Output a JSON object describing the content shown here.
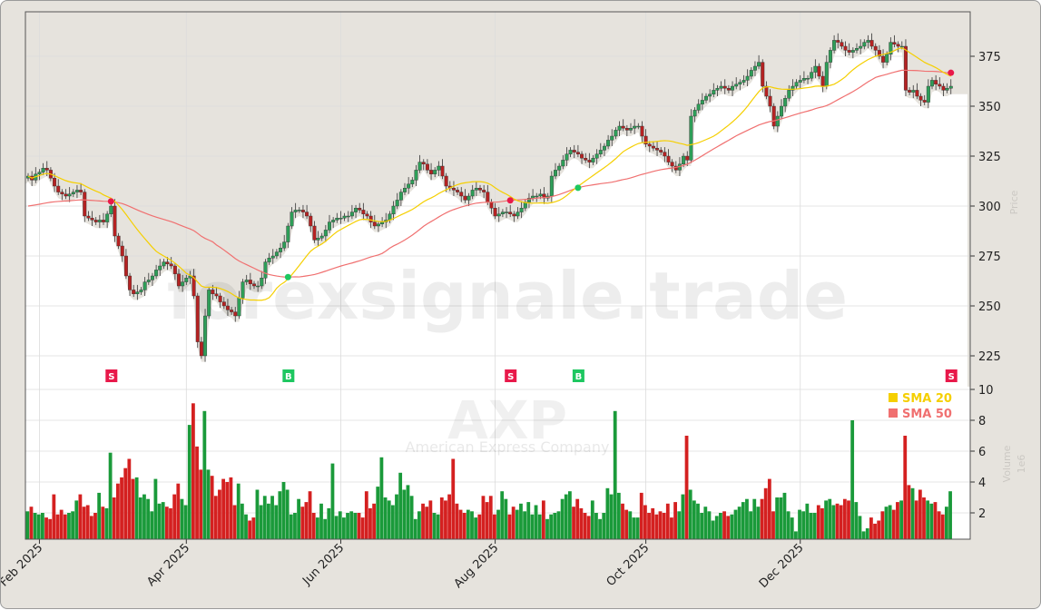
{
  "chart_data": {
    "type": "candlestick",
    "ticker": "AXP",
    "company": "American Express Company",
    "watermark": "forexsignale.trade",
    "price_axis": {
      "label": "Price",
      "ticks": [
        225,
        250,
        275,
        300,
        325,
        350,
        375
      ],
      "range": [
        213,
        397
      ]
    },
    "volume_axis": {
      "label": "Volume",
      "unit": "1e6",
      "ticks": [
        2,
        4,
        6,
        8,
        10
      ],
      "range": [
        0,
        10.2
      ]
    },
    "x_ticks": [
      {
        "label": "Feb 2025",
        "at": 3
      },
      {
        "label": "Apr 2025",
        "at": 42
      },
      {
        "label": "Jun 2025",
        "at": 83
      },
      {
        "label": "Aug 2025",
        "at": 124
      },
      {
        "label": "Oct 2025",
        "at": 164
      },
      {
        "label": "Dec 2025",
        "at": 205
      }
    ],
    "grid": true,
    "legend": {
      "position": "right",
      "items": [
        {
          "label": "SMA 20",
          "color": "#f5cf00"
        },
        {
          "label": "SMA 50",
          "color": "#f07070"
        }
      ]
    },
    "colors": {
      "up": "#1a9a3a",
      "down": "#d42020",
      "sell": "#e8194a",
      "buy": "#1ec760",
      "shade": "#e6e3dd"
    },
    "close": [
      315,
      313,
      316,
      317,
      319,
      318,
      314,
      310,
      307,
      306,
      305,
      306,
      307,
      308,
      307,
      295,
      294,
      293,
      292,
      293,
      292,
      296,
      300,
      285,
      280,
      275,
      265,
      258,
      256,
      257,
      258,
      262,
      263,
      265,
      268,
      270,
      272,
      271,
      270,
      266,
      260,
      262,
      264,
      265,
      255,
      232,
      225,
      245,
      258,
      256,
      255,
      252,
      250,
      248,
      247,
      245,
      254,
      262,
      263,
      261,
      260,
      260,
      264,
      272,
      274,
      275,
      277,
      279,
      282,
      290,
      297,
      298,
      298,
      297,
      295,
      290,
      283,
      284,
      285,
      288,
      292,
      293,
      294,
      294,
      295,
      295,
      297,
      299,
      298,
      296,
      295,
      292,
      290,
      291,
      292,
      293,
      296,
      300,
      303,
      307,
      309,
      311,
      313,
      318,
      322,
      321,
      318,
      316,
      318,
      320,
      315,
      310,
      309,
      308,
      307,
      305,
      303,
      305,
      308,
      309,
      308,
      307,
      302,
      299,
      295,
      296,
      297,
      297,
      296,
      295,
      297,
      299,
      302,
      304,
      305,
      305,
      306,
      304,
      305,
      315,
      318,
      320,
      323,
      326,
      328,
      327,
      326,
      324,
      323,
      322,
      324,
      326,
      328,
      330,
      333,
      335,
      338,
      340,
      339,
      338,
      339,
      340,
      340,
      335,
      331,
      330,
      329,
      328,
      327,
      325,
      322,
      320,
      318,
      321,
      325,
      323,
      345,
      348,
      351,
      353,
      355,
      356,
      358,
      359,
      360,
      359,
      358,
      360,
      361,
      362,
      363,
      365,
      368,
      370,
      372,
      360,
      355,
      350,
      340,
      345,
      350,
      354,
      358,
      360,
      362,
      363,
      364,
      364,
      367,
      370,
      365,
      360,
      372,
      378,
      383,
      382,
      380,
      378,
      377,
      378,
      379,
      380,
      382,
      383,
      380,
      378,
      375,
      372,
      376,
      382,
      381,
      380,
      380,
      358,
      357,
      358,
      355,
      353,
      352,
      360,
      363,
      361,
      360,
      358,
      359,
      360
    ],
    "volume": [
      2.1,
      2.4,
      2.0,
      1.9,
      2.0,
      1.7,
      1.6,
      3.2,
      1.9,
      2.2,
      1.9,
      2.0,
      2.1,
      2.8,
      3.2,
      2.4,
      2.5,
      1.8,
      2.0,
      3.3,
      2.4,
      2.3,
      5.9,
      3.0,
      3.9,
      4.3,
      4.9,
      5.5,
      4.2,
      4.3,
      3.0,
      3.2,
      2.9,
      2.1,
      4.2,
      2.6,
      2.7,
      2.4,
      2.3,
      3.2,
      3.9,
      2.9,
      2.5,
      7.7,
      9.1,
      6.3,
      4.8,
      8.6,
      4.8,
      4.4,
      3.1,
      3.5,
      4.2,
      4.0,
      4.3,
      2.5,
      3.9,
      2.6,
      1.9,
      1.5,
      1.7,
      3.5,
      2.5,
      3.1,
      2.6,
      3.1,
      2.5,
      3.4,
      4.0,
      3.5,
      1.9,
      2.0,
      2.9,
      2.4,
      2.7,
      3.4,
      2.0,
      1.7,
      2.6,
      1.6,
      2.3,
      5.2,
      1.8,
      2.1,
      1.7,
      2.0,
      2.1,
      2.0,
      2.0,
      1.7,
      3.4,
      2.3,
      2.6,
      3.7,
      5.6,
      3.0,
      2.8,
      2.5,
      3.2,
      4.6,
      3.5,
      3.8,
      3.1,
      1.6,
      2.1,
      2.6,
      2.4,
      2.8,
      2.0,
      1.9,
      3.0,
      2.8,
      3.2,
      5.5,
      2.6,
      2.2,
      2.0,
      2.2,
      2.1,
      1.7,
      1.9,
      3.1,
      2.7,
      3.1,
      1.9,
      2.2,
      3.4,
      2.9,
      1.9,
      2.4,
      2.2,
      2.6,
      2.1,
      2.7,
      1.9,
      2.5,
      1.9,
      2.8,
      1.6,
      1.9,
      2.0,
      2.1,
      2.9,
      3.2,
      3.4,
      2.4,
      2.9,
      2.3,
      2.0,
      1.8,
      2.8,
      2.0,
      1.6,
      2.0,
      3.6,
      3.2,
      8.6,
      3.3,
      2.6,
      2.2,
      2.1,
      1.7,
      1.7,
      3.3,
      2.5,
      2.0,
      2.3,
      1.9,
      2.1,
      2.0,
      2.6,
      1.7,
      2.7,
      2.1,
      3.2,
      7.0,
      3.5,
      2.8,
      2.6,
      2.0,
      2.4,
      2.1,
      1.5,
      1.8,
      2.0,
      2.1,
      1.8,
      1.9,
      2.2,
      2.4,
      2.7,
      2.9,
      2.1,
      2.9,
      2.4,
      2.9,
      3.6,
      4.2,
      2.1,
      3.0,
      3.0,
      3.3,
      2.1,
      1.7,
      0.8,
      2.2,
      2.1,
      2.6,
      2.0,
      2.0,
      2.5,
      2.3,
      2.8,
      2.9,
      2.5,
      2.6,
      2.5,
      2.9,
      2.8,
      8.0,
      2.7,
      1.8,
      0.8,
      1.0,
      1.7,
      1.3,
      1.5,
      2.1,
      2.4,
      2.5,
      2.2,
      2.7,
      2.8,
      7.0,
      3.8,
      3.6,
      2.8,
      3.5,
      3.0,
      2.8,
      2.6,
      2.7,
      2.1,
      1.9,
      2.4,
      3.4
    ],
    "signals": [
      {
        "type": "S",
        "at": 22
      },
      {
        "type": "B",
        "at": 69
      },
      {
        "type": "S",
        "at": 128
      },
      {
        "type": "B",
        "at": 146
      },
      {
        "type": "S",
        "at": 245
      }
    ]
  }
}
